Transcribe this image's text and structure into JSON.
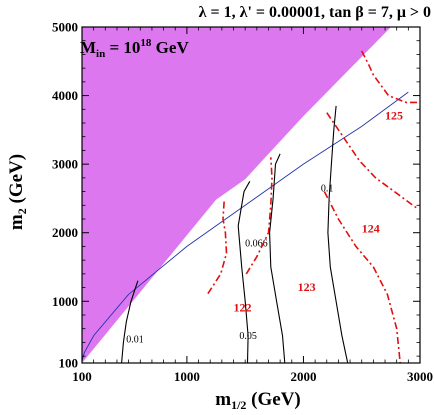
{
  "chart_data": {
    "type": "scatter",
    "title": "λ = 1, λ' = 0.00001, tan β = 7, μ > 0",
    "xlabel": "m",
    "xlabel_sub": "1/2",
    "xlabel_unit": " (GeV)",
    "ylabel": "m",
    "ylabel_sub": "2",
    "ylabel_unit": " (GeV)",
    "annotation": {
      "prefix": "M",
      "sub": "in",
      "mid": " = 10",
      "sup": "18",
      "suffix": " GeV"
    },
    "xlim": [
      100,
      3000
    ],
    "ylim": [
      100,
      5000
    ],
    "xticks": [
      100,
      1000,
      2000,
      3000
    ],
    "xtick_labels": [
      "100",
      "1000",
      "2000",
      "3000"
    ],
    "yticks": [
      100,
      1000,
      2000,
      3000,
      4000,
      5000
    ],
    "ytick_labels": [
      "100",
      "1000",
      "2000",
      "3000",
      "4000",
      "5000"
    ],
    "grid": false,
    "excluded_region": {
      "color": "#dd77f0",
      "boundary": [
        [
          100,
          100
        ],
        [
          1250,
          2480
        ],
        [
          1500,
          2780
        ],
        [
          2000,
          3700
        ],
        [
          2750,
          5000
        ]
      ]
    },
    "blue_line": {
      "color": "#2233aa",
      "points": [
        [
          100,
          130
        ],
        [
          120,
          250
        ],
        [
          200,
          500
        ],
        [
          500,
          1100
        ],
        [
          1000,
          1800
        ],
        [
          1500,
          2400
        ],
        [
          2000,
          3000
        ],
        [
          2500,
          3550
        ],
        [
          2900,
          4050
        ]
      ]
    },
    "black_contours": {
      "color": "#000000",
      "series": [
        {
          "label": "0.01",
          "label_at": [
            480,
            400
          ],
          "points": [
            [
              440,
              100
            ],
            [
              455,
              400
            ],
            [
              480,
              700
            ],
            [
              520,
              1000
            ],
            [
              580,
              1300
            ]
          ]
        },
        {
          "label": "0.05",
          "label_at": [
            1450,
            450
          ],
          "points": [
            [
              1520,
              100
            ],
            [
              1525,
              500
            ],
            [
              1500,
              1000
            ],
            [
              1470,
              1500
            ],
            [
              1440,
              2100
            ],
            [
              1490,
              2600
            ],
            [
              1540,
              2750
            ]
          ]
        },
        {
          "label": "0.066",
          "label_at": [
            1500,
            1800
          ],
          "points": [
            [
              1840,
              100
            ],
            [
              1820,
              500
            ],
            [
              1770,
              1000
            ],
            [
              1720,
              1500
            ],
            [
              1710,
              2000
            ],
            [
              1740,
              2500
            ],
            [
              1760,
              3000
            ],
            [
              1800,
              3150
            ]
          ]
        },
        {
          "label": "0.1",
          "label_at": [
            2150,
            2600
          ],
          "points": [
            [
              2380,
              100
            ],
            [
              2330,
              500
            ],
            [
              2280,
              1000
            ],
            [
              2230,
              1500
            ],
            [
              2210,
              2000
            ],
            [
              2220,
              2500
            ],
            [
              2240,
              3000
            ],
            [
              2260,
              3500
            ],
            [
              2280,
              3850
            ]
          ]
        }
      ]
    },
    "red_contours": {
      "color": "#e01010",
      "series": [
        {
          "label": "122",
          "label_at": [
            1400,
            850
          ],
          "points": [
            [
              1180,
              1110
            ],
            [
              1290,
              1400
            ],
            [
              1340,
              1700
            ],
            [
              1330,
              2000
            ],
            [
              1310,
              2200
            ],
            [
              1320,
              2470
            ]
          ]
        },
        {
          "label": "123",
          "label_at": [
            1950,
            1150
          ],
          "points": [
            [
              1510,
              1400
            ],
            [
              1600,
              1650
            ],
            [
              1700,
              2000
            ],
            [
              1720,
              2400
            ],
            [
              1730,
              2800
            ],
            [
              1720,
              3100
            ]
          ]
        },
        {
          "label": "124",
          "label_at": [
            2500,
            2000
          ],
          "points": [
            [
              2180,
              2600
            ],
            [
              2300,
              2200
            ],
            [
              2450,
              1800
            ],
            [
              2600,
              1500
            ],
            [
              2720,
              1100
            ],
            [
              2800,
              600
            ],
            [
              2830,
              100
            ]
          ]
        },
        {
          "label": "125",
          "label_at": [
            2700,
            3650
          ],
          "points": [
            [
              2200,
              3750
            ],
            [
              2480,
              3050
            ],
            [
              2620,
              2800
            ],
            [
              2780,
              2600
            ],
            [
              2900,
              2450
            ],
            [
              2980,
              2350
            ]
          ]
        },
        {
          "label": "",
          "label_at": null,
          "points": [
            [
              2500,
              4650
            ],
            [
              2560,
              4450
            ],
            [
              2600,
              4300
            ],
            [
              2730,
              4000
            ],
            [
              2880,
              3900
            ],
            [
              3000,
              3900
            ]
          ]
        }
      ]
    }
  }
}
